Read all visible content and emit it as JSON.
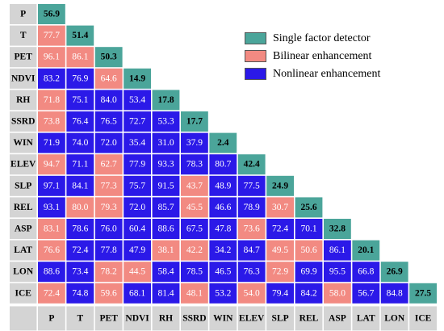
{
  "chart_data": {
    "type": "heatmap",
    "subtype": "lower-triangular interaction matrix",
    "variables": [
      "P",
      "T",
      "PET",
      "NDVI",
      "RH",
      "SSRD",
      "WIN",
      "ELEV",
      "SLP",
      "REL",
      "ASP",
      "LAT",
      "LON",
      "ICE"
    ],
    "values": [
      [
        56.9
      ],
      [
        77.7,
        51.4
      ],
      [
        96.1,
        86.1,
        50.3
      ],
      [
        83.2,
        76.9,
        64.6,
        14.9
      ],
      [
        71.8,
        75.1,
        84.0,
        53.4,
        17.8
      ],
      [
        73.8,
        76.4,
        76.5,
        72.7,
        53.3,
        17.7
      ],
      [
        71.9,
        74.0,
        72.0,
        35.4,
        31.0,
        37.9,
        2.4
      ],
      [
        94.7,
        71.1,
        62.7,
        77.9,
        93.3,
        78.3,
        80.7,
        42.4
      ],
      [
        97.1,
        84.1,
        77.3,
        75.7,
        91.5,
        43.7,
        48.9,
        77.5,
        24.9
      ],
      [
        93.1,
        80.0,
        79.3,
        72.0,
        85.7,
        45.5,
        46.6,
        78.9,
        30.7,
        25.6
      ],
      [
        83.1,
        78.6,
        76.0,
        60.4,
        88.6,
        67.5,
        47.8,
        73.6,
        72.4,
        70.1,
        32.8
      ],
      [
        76.6,
        72.4,
        77.8,
        47.9,
        38.1,
        42.2,
        34.2,
        84.7,
        49.5,
        50.6,
        86.1,
        20.1
      ],
      [
        88.6,
        73.4,
        78.2,
        44.5,
        58.4,
        78.5,
        46.5,
        76.3,
        72.9,
        69.9,
        95.5,
        66.8,
        26.9
      ],
      [
        72.4,
        74.8,
        59.6,
        68.1,
        81.4,
        48.1,
        53.2,
        54.0,
        79.4,
        84.2,
        58.0,
        56.7,
        84.8,
        27.5
      ]
    ],
    "categories_code": [
      [
        "S"
      ],
      [
        "B",
        "S"
      ],
      [
        "B",
        "B",
        "S"
      ],
      [
        "N",
        "N",
        "B",
        "S"
      ],
      [
        "B",
        "N",
        "N",
        "N",
        "S"
      ],
      [
        "B",
        "N",
        "N",
        "N",
        "N",
        "S"
      ],
      [
        "N",
        "N",
        "N",
        "N",
        "N",
        "N",
        "S"
      ],
      [
        "B",
        "N",
        "B",
        "N",
        "N",
        "N",
        "N",
        "S"
      ],
      [
        "N",
        "N",
        "B",
        "N",
        "N",
        "B",
        "N",
        "N",
        "S"
      ],
      [
        "N",
        "B",
        "B",
        "N",
        "N",
        "B",
        "N",
        "N",
        "B",
        "S"
      ],
      [
        "B",
        "N",
        "N",
        "N",
        "N",
        "N",
        "N",
        "B",
        "N",
        "N",
        "S"
      ],
      [
        "B",
        "N",
        "N",
        "N",
        "B",
        "B",
        "N",
        "N",
        "B",
        "B",
        "N",
        "S"
      ],
      [
        "N",
        "N",
        "B",
        "B",
        "N",
        "N",
        "N",
        "N",
        "B",
        "N",
        "N",
        "N",
        "S"
      ],
      [
        "B",
        "N",
        "B",
        "N",
        "N",
        "B",
        "N",
        "B",
        "N",
        "N",
        "B",
        "N",
        "N",
        "S"
      ]
    ],
    "category_labels": {
      "S": "Single factor detector",
      "B": "Bilinear enhancement",
      "N": "Nonlinear enhancement"
    },
    "colors": {
      "S": "#4BA59A",
      "B": "#F28A82",
      "N": "#2B19E8",
      "header_bg": "#D4D4D4",
      "cell_border": "#ffffff",
      "text_on_light": "#000000",
      "text_on_dark": "#ffffff"
    },
    "title": "",
    "legend_position": "top-right"
  },
  "legend": {
    "items": [
      {
        "key": "S",
        "label": "Single factor detector",
        "color": "#4BA59A"
      },
      {
        "key": "B",
        "label": "Bilinear enhancement",
        "color": "#F28A82"
      },
      {
        "key": "N",
        "label": "Nonlinear enhancement",
        "color": "#2B19E8"
      }
    ]
  }
}
